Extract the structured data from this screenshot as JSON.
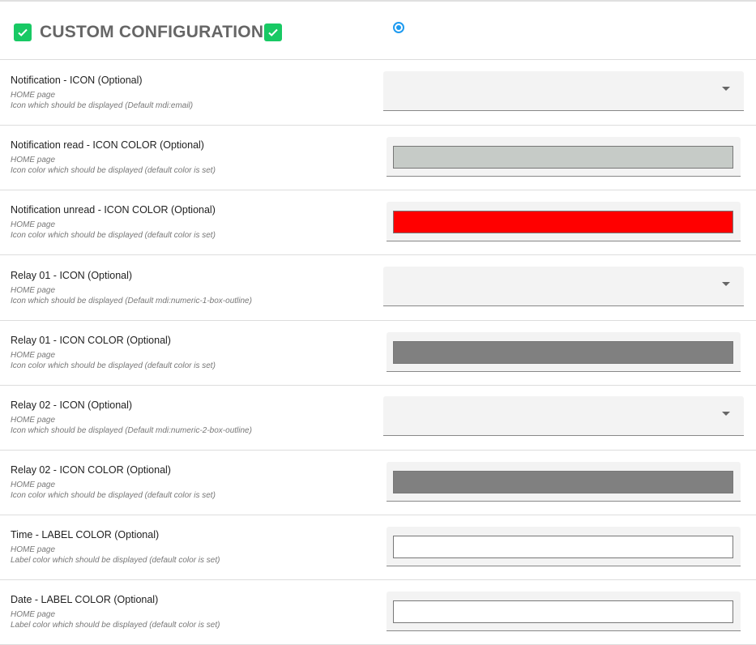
{
  "header": {
    "title": "CUSTOM CONFIGURATION",
    "check_color": "#18c964",
    "radio_selected": true
  },
  "rows": [
    {
      "label": "Notification - ICON (Optional)",
      "page": "HOME page",
      "desc": "Icon which should be displayed (Default mdi:email)",
      "type": "select",
      "value": ""
    },
    {
      "label": "Notification read - ICON COLOR (Optional)",
      "page": "HOME page",
      "desc": "Icon color which should be displayed (default color is set)",
      "type": "color",
      "value": "#c6cbc7"
    },
    {
      "label": "Notification unread - ICON COLOR (Optional)",
      "page": "HOME page",
      "desc": "Icon color which should be displayed (default color is set)",
      "type": "color",
      "value": "#ff0000"
    },
    {
      "label": "Relay 01 - ICON (Optional)",
      "page": "HOME page",
      "desc": "Icon which should be displayed (Default mdi:numeric-1-box-outline)",
      "type": "select",
      "value": ""
    },
    {
      "label": "Relay 01 - ICON COLOR (Optional)",
      "page": "HOME page",
      "desc": "Icon color which should be displayed (default color is set)",
      "type": "color",
      "value": "#808080"
    },
    {
      "label": "Relay 02 - ICON (Optional)",
      "page": "HOME page",
      "desc": "Icon which should be displayed (Default mdi:numeric-2-box-outline)",
      "type": "select",
      "value": ""
    },
    {
      "label": "Relay 02 - ICON COLOR (Optional)",
      "page": "HOME page",
      "desc": "Icon color which should be displayed (default color is set)",
      "type": "color",
      "value": "#808080"
    },
    {
      "label": "Time - LABEL COLOR (Optional)",
      "page": "HOME page",
      "desc": "Label color which should be displayed (default color is set)",
      "type": "color",
      "value": "#ffffff"
    },
    {
      "label": "Date - LABEL COLOR (Optional)",
      "page": "HOME page",
      "desc": "Label color which should be displayed (default color is set)",
      "type": "color",
      "value": "#ffffff"
    }
  ]
}
